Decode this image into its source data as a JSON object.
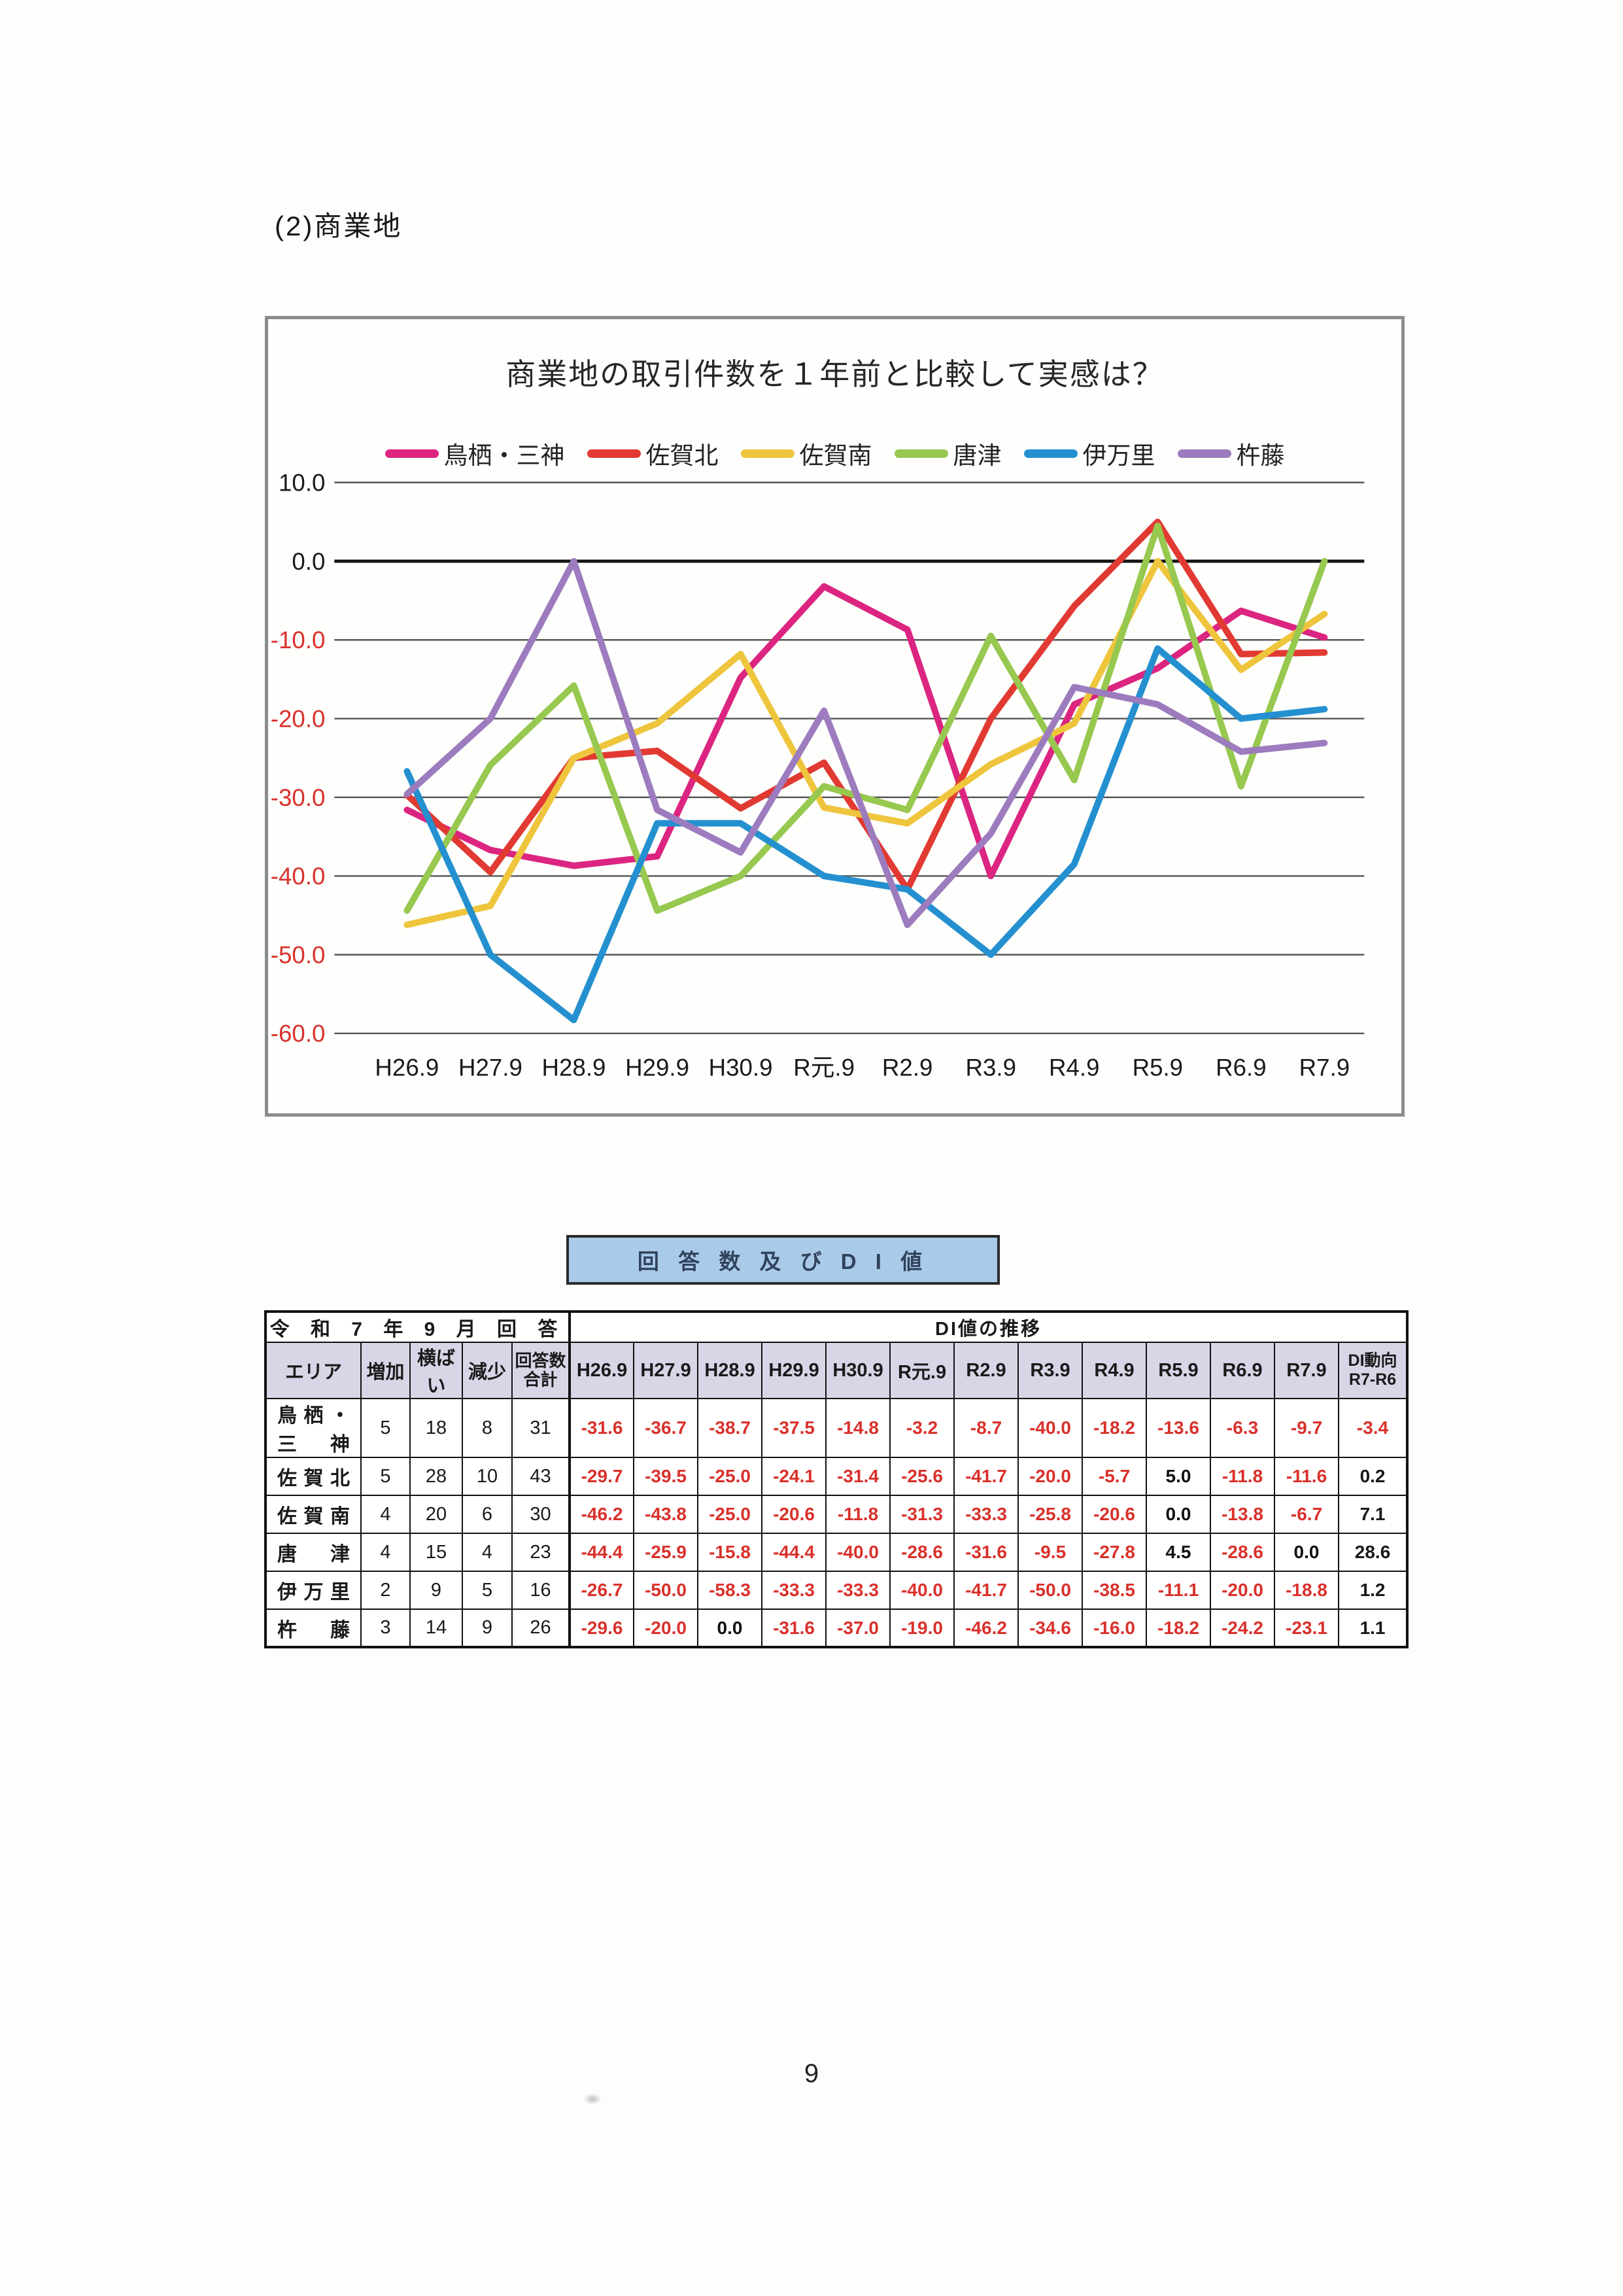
{
  "page": {
    "section_title": "(2)商業地",
    "page_number": "9"
  },
  "chart_data": {
    "type": "line",
    "title": "商業地の取引件数を１年前と比較して実感は？",
    "categories": [
      "H26.9",
      "H27.9",
      "H28.9",
      "H29.9",
      "H30.9",
      "R元.9",
      "R2.9",
      "R3.9",
      "R4.9",
      "R5.9",
      "R6.9",
      "R7.9"
    ],
    "y_ticks": [
      10.0,
      0.0,
      -10.0,
      -20.0,
      -30.0,
      -40.0,
      -50.0,
      -60.0
    ],
    "ylim": [
      -60,
      10
    ],
    "grid": true,
    "legend_position": "top",
    "series": [
      {
        "name": "鳥栖・三神",
        "color": "#dc2580",
        "values": [
          -31.6,
          -36.7,
          -38.7,
          -37.5,
          -14.8,
          -3.2,
          -8.7,
          -40.0,
          -18.2,
          -13.6,
          -6.3,
          -9.7
        ]
      },
      {
        "name": "佐賀北",
        "color": "#e13a33",
        "values": [
          -29.7,
          -39.5,
          -25.0,
          -24.1,
          -31.4,
          -25.6,
          -41.7,
          -20.0,
          -5.7,
          5.0,
          -11.8,
          -11.6
        ]
      },
      {
        "name": "佐賀南",
        "color": "#eec53c",
        "values": [
          -46.2,
          -43.8,
          -25.0,
          -20.6,
          -11.8,
          -31.3,
          -33.3,
          -25.8,
          -20.6,
          0.0,
          -13.8,
          -6.7
        ]
      },
      {
        "name": "唐津",
        "color": "#97c84f",
        "values": [
          -44.4,
          -25.9,
          -15.8,
          -44.4,
          -40.0,
          -28.6,
          -31.6,
          -9.5,
          -27.8,
          4.5,
          -28.6,
          0.0
        ]
      },
      {
        "name": "伊万里",
        "color": "#2490d0",
        "values": [
          -26.7,
          -50.0,
          -58.3,
          -33.3,
          -33.3,
          -40.0,
          -41.7,
          -50.0,
          -38.5,
          -11.1,
          -20.0,
          -18.8
        ]
      },
      {
        "name": "杵藤",
        "color": "#9c7cbe",
        "values": [
          -29.6,
          -20.0,
          0.0,
          -31.6,
          -37.0,
          -19.0,
          -46.2,
          -34.6,
          -16.0,
          -18.2,
          -24.2,
          -23.1
        ]
      }
    ]
  },
  "banner": {
    "label": "回 答 数 及 び D I 値"
  },
  "table": {
    "group_header_left": "令 和 7 年 9 月 回 答",
    "group_header_right": "DI値の推移",
    "col_area": "エリア",
    "col_increase": "増加",
    "col_flat": "横ばい",
    "col_decrease": "減少",
    "col_total_line1": "回答数",
    "col_total_line2": "合計",
    "di_columns": [
      "H26.9",
      "H27.9",
      "H28.9",
      "H29.9",
      "H30.9",
      "R元.9",
      "R2.9",
      "R3.9",
      "R4.9",
      "R5.9",
      "R6.9",
      "R7.9"
    ],
    "col_trend_line1": "DI動向",
    "col_trend_line2": "R7-R6",
    "rows": [
      {
        "area": "鳥栖・三神",
        "increase": 5,
        "flat": 18,
        "decrease": 8,
        "total": 31,
        "di": [
          -31.6,
          -36.7,
          -38.7,
          -37.5,
          -14.8,
          -3.2,
          -8.7,
          -40.0,
          -18.2,
          -13.6,
          -6.3,
          -9.7
        ],
        "trend": -3.4
      },
      {
        "area": "佐賀北",
        "increase": 5,
        "flat": 28,
        "decrease": 10,
        "total": 43,
        "di": [
          -29.7,
          -39.5,
          -25.0,
          -24.1,
          -31.4,
          -25.6,
          -41.7,
          -20.0,
          -5.7,
          5.0,
          -11.8,
          -11.6
        ],
        "trend": 0.2
      },
      {
        "area": "佐賀南",
        "increase": 4,
        "flat": 20,
        "decrease": 6,
        "total": 30,
        "di": [
          -46.2,
          -43.8,
          -25.0,
          -20.6,
          -11.8,
          -31.3,
          -33.3,
          -25.8,
          -20.6,
          0.0,
          -13.8,
          -6.7
        ],
        "trend": 7.1
      },
      {
        "area": "唐津",
        "increase": 4,
        "flat": 15,
        "decrease": 4,
        "total": 23,
        "di": [
          -44.4,
          -25.9,
          -15.8,
          -44.4,
          -40.0,
          -28.6,
          -31.6,
          -9.5,
          -27.8,
          4.5,
          -28.6,
          0.0
        ],
        "trend": 28.6
      },
      {
        "area": "伊万里",
        "increase": 2,
        "flat": 9,
        "decrease": 5,
        "total": 16,
        "di": [
          -26.7,
          -50.0,
          -58.3,
          -33.3,
          -33.3,
          -40.0,
          -41.7,
          -50.0,
          -38.5,
          -11.1,
          -20.0,
          -18.8
        ],
        "trend": 1.2
      },
      {
        "area": "杵藤",
        "increase": 3,
        "flat": 14,
        "decrease": 9,
        "total": 26,
        "di": [
          -29.6,
          -20.0,
          0.0,
          -31.6,
          -37.0,
          -19.0,
          -46.2,
          -34.6,
          -16.0,
          -18.2,
          -24.2,
          -23.1
        ],
        "trend": 1.1
      }
    ]
  },
  "style_colors": {
    "banner_bg": "#a9cbe9",
    "table_header_bg": "#d6d6e7",
    "negative_red": "#d9312b",
    "chart_border_gray": "#8c8c8c"
  }
}
